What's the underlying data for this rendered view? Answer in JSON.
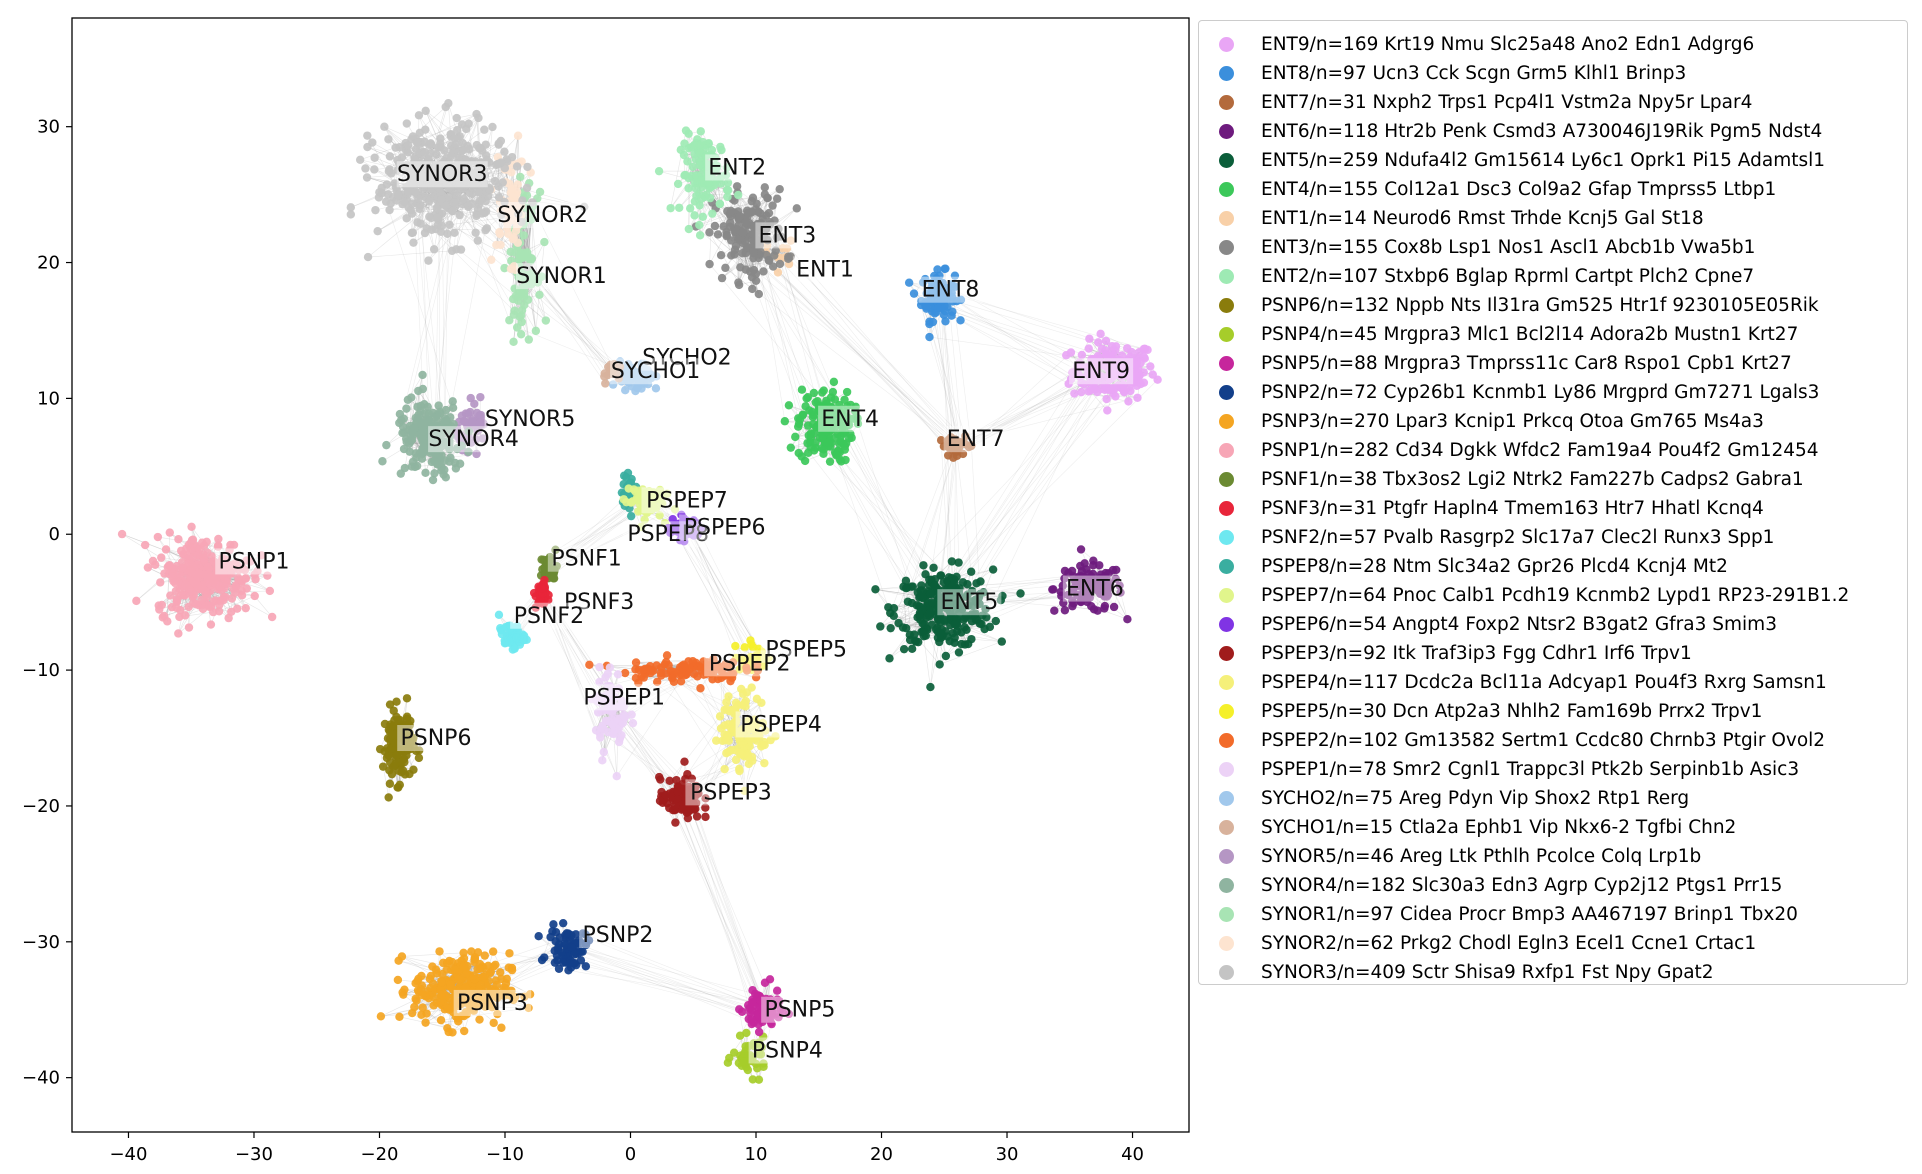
{
  "chart_data": {
    "type": "scatter",
    "title": "",
    "xlabel": "",
    "ylabel": "",
    "xlim": [
      -44.5,
      44.5
    ],
    "ylim": [
      -44,
      38
    ],
    "x_ticks": [
      -40,
      -30,
      -20,
      -10,
      0,
      10,
      20,
      30,
      40
    ],
    "y_ticks": [
      -40,
      -30,
      -20,
      -10,
      0,
      10,
      20,
      30
    ],
    "legend_position": "outside-right",
    "clusters": [
      {
        "id": "ENT9",
        "legend": "ENT9/n=169 Krt19 Nmu Slc25a48 Ano2 Edn1 Adgrg6",
        "color": "#e9a6f5",
        "center": [
          38.5,
          12
        ],
        "spread": [
          3.0,
          2.0
        ],
        "n": 169,
        "label_pos": [
          37.5,
          12
        ]
      },
      {
        "id": "ENT8",
        "legend": "ENT8/n=97 Ucn3 Cck Scgn Grm5 Klhl1 Brinp3",
        "color": "#3b8fdc",
        "center": [
          24.5,
          17.5
        ],
        "spread": [
          1.2,
          1.6
        ],
        "n": 97,
        "label_pos": [
          25.5,
          18
        ]
      },
      {
        "id": "ENT7",
        "legend": "ENT7/n=31 Nxph2 Trps1 Pcp4l1 Vstm2a Npy5r Lpar4",
        "color": "#b36a3c",
        "center": [
          26,
          6.5
        ],
        "spread": [
          1.3,
          0.6
        ],
        "n": 31,
        "label_pos": [
          27.5,
          7
        ]
      },
      {
        "id": "ENT6",
        "legend": "ENT6/n=118 Htr2b Penk Csmd3 A730046J19Rik Pgm5 Ndst4",
        "color": "#6e1b7e",
        "center": [
          36.5,
          -4
        ],
        "spread": [
          2.5,
          1.6
        ],
        "n": 118,
        "label_pos": [
          37,
          -4
        ]
      },
      {
        "id": "ENT5",
        "legend": "ENT5/n=259 Ndufa4l2 Gm15614 Ly6c1 Oprk1 Pi15 Adamtsl1",
        "color": "#0b5e3a",
        "center": [
          25,
          -5.5
        ],
        "spread": [
          3.5,
          2.6
        ],
        "n": 259,
        "label_pos": [
          27,
          -5
        ]
      },
      {
        "id": "ENT4",
        "legend": "ENT4/n=155 Col12a1 Dsc3 Col9a2 Gfap Tmprss5 Ltbp1",
        "color": "#3cc85a",
        "center": [
          15.5,
          8
        ],
        "spread": [
          2.0,
          2.5
        ],
        "n": 155,
        "label_pos": [
          17.5,
          8.5
        ]
      },
      {
        "id": "ENT1",
        "legend": "ENT1/n=14 Neurod6 Rmst Trhde Kcnj5 Gal St18",
        "color": "#f8d0a8",
        "center": [
          12,
          20.5
        ],
        "spread": [
          1.0,
          1.0
        ],
        "n": 14,
        "label_pos": [
          15.5,
          19.5
        ]
      },
      {
        "id": "ENT3",
        "legend": "ENT3/n=155 Cox8b Lsp1 Nos1 Ascl1 Abcb1b Vwa5b1",
        "color": "#888888",
        "center": [
          9.5,
          22
        ],
        "spread": [
          2.6,
          3.0
        ],
        "n": 155,
        "label_pos": [
          12.5,
          22
        ]
      },
      {
        "id": "ENT2",
        "legend": "ENT2/n=107 Stxbp6 Bglap Rprml Cartpt Plch2 Cpne7",
        "color": "#9eeab4",
        "center": [
          6,
          26.5
        ],
        "spread": [
          1.8,
          2.6
        ],
        "n": 107,
        "label_pos": [
          8.5,
          27
        ]
      },
      {
        "id": "PSNP6",
        "legend": "PSNP6/n=132 Nppb Nts Il31ra Gm525 Htr1f 9230105E05Rik",
        "color": "#8a7c0c",
        "center": [
          -18.5,
          -15.5
        ],
        "spread": [
          1.1,
          2.4
        ],
        "n": 132,
        "label_pos": [
          -15.5,
          -15
        ]
      },
      {
        "id": "PSNP4",
        "legend": "PSNP4/n=45 Mrgpra3 Mlc1 Bcl2l14 Adora2b Mustn1 Krt27",
        "color": "#a6cd2a",
        "center": [
          9.5,
          -38.5
        ],
        "spread": [
          1.2,
          1.2
        ],
        "n": 45,
        "label_pos": [
          12.5,
          -38
        ]
      },
      {
        "id": "PSNP5",
        "legend": "PSNP5/n=88 Mrgpra3 Tmprss11c Car8 Rspo1 Cpb1 Krt27",
        "color": "#c6269c",
        "center": [
          10.5,
          -35
        ],
        "spread": [
          1.3,
          1.4
        ],
        "n": 88,
        "label_pos": [
          13.5,
          -35
        ]
      },
      {
        "id": "PSNP2",
        "legend": "PSNP2/n=72 Cyp26b1 Kcnmb1 Ly86 Mrgprd Gm7271 Lgals3",
        "color": "#123f8a",
        "center": [
          -5,
          -30.5
        ],
        "spread": [
          1.4,
          1.3
        ],
        "n": 72,
        "label_pos": [
          -1,
          -29.5
        ]
      },
      {
        "id": "PSNP3",
        "legend": "PSNP3/n=270 Lpar3 Kcnip1 Prkcq Otoa Gm765 Ms4a3",
        "color": "#f4a522",
        "center": [
          -13.5,
          -33.5
        ],
        "spread": [
          3.5,
          2.4
        ],
        "n": 270,
        "label_pos": [
          -11,
          -34.5
        ]
      },
      {
        "id": "PSNP1",
        "legend": "PSNP1/n=282 Cd34 Dgkk Wfdc2 Fam19a4 Pou4f2 Gm12454",
        "color": "#f7a6b6",
        "center": [
          -34,
          -3
        ],
        "spread": [
          3.5,
          2.6
        ],
        "n": 282,
        "label_pos": [
          -30,
          -2
        ]
      },
      {
        "id": "PSNF1",
        "legend": "PSNF1/n=38 Tbx3os2 Lgi2 Ntrk2 Fam227b Cadps2 Gabra1",
        "color": "#6b8a32",
        "center": [
          -6.5,
          -2.5
        ],
        "spread": [
          0.6,
          0.9
        ],
        "n": 38,
        "label_pos": [
          -3.5,
          -1.8
        ]
      },
      {
        "id": "PSNF3",
        "legend": "PSNF3/n=31 Ptgfr Hapln4 Tmem163 Htr7 Hhatl Kcnq4",
        "color": "#e8253a",
        "center": [
          -7,
          -4.5
        ],
        "spread": [
          0.5,
          1.0
        ],
        "n": 31,
        "label_pos": [
          -2.5,
          -5
        ]
      },
      {
        "id": "PSNF2",
        "legend": "PSNF2/n=57 Pvalb Rasgrp2 Slc17a7 Clec2l Runx3 Spp1",
        "color": "#6ee8f0",
        "center": [
          -9.5,
          -7.5
        ],
        "spread": [
          0.9,
          0.8
        ],
        "n": 57,
        "label_pos": [
          -6.5,
          -6
        ]
      },
      {
        "id": "PSPEP8",
        "legend": "PSPEP8/n=28 Ntm Slc34a2 Gpr26 Plcd4 Kcnj4 Mt2",
        "color": "#3aaea0",
        "center": [
          0,
          3
        ],
        "spread": [
          0.6,
          1.2
        ],
        "n": 28,
        "label_pos": [
          3,
          0
        ]
      },
      {
        "id": "PSPEP7",
        "legend": "PSPEP7/n=64 Pnoc Calb1 Pcdh19 Kcnmb2 Lypd1 RP23-291B1.2",
        "color": "#e1f58c",
        "center": [
          1,
          2.5
        ],
        "spread": [
          1.4,
          1.2
        ],
        "n": 64,
        "label_pos": [
          4.5,
          2.5
        ]
      },
      {
        "id": "PSPEP6",
        "legend": "PSPEP6/n=54 Angpt4 Foxp2 Ntsr2 B3gat2 Gfra3 Smim3",
        "color": "#8034e4",
        "center": [
          4.5,
          0.5
        ],
        "spread": [
          1.2,
          0.8
        ],
        "n": 54,
        "label_pos": [
          7.5,
          0.5
        ]
      },
      {
        "id": "PSPEP3",
        "legend": "PSPEP3/n=92 Itk Traf3ip3 Fgg Cdhr1 Irf6 Trpv1",
        "color": "#a01c1c",
        "center": [
          4,
          -19.5
        ],
        "spread": [
          1.5,
          1.4
        ],
        "n": 92,
        "label_pos": [
          8,
          -19
        ]
      },
      {
        "id": "PSPEP4",
        "legend": "PSPEP4/n=117 Dcdc2a Bcl11a Adcyap1 Pou4f3 Rxrg Samsn1",
        "color": "#f5f07a",
        "center": [
          9,
          -14.5
        ],
        "spread": [
          1.8,
          2.6
        ],
        "n": 117,
        "label_pos": [
          12,
          -14
        ]
      },
      {
        "id": "PSPEP5",
        "legend": "PSPEP5/n=30 Dcn Atp2a3 Nhlh2 Fam169b Prrx2 Trpv1",
        "color": "#f5f02a",
        "center": [
          10,
          -9
        ],
        "spread": [
          1.5,
          1.0
        ],
        "n": 30,
        "label_pos": [
          14,
          -8.5
        ]
      },
      {
        "id": "PSPEP2",
        "legend": "PSPEP2/n=102 Gm13582 Sertm1 Ccdc80 Chrnb3 Ptgir Ovol2",
        "color": "#f26b2a",
        "center": [
          4,
          -10
        ],
        "spread": [
          4.5,
          0.8
        ],
        "n": 102,
        "label_pos": [
          9.5,
          -9.5
        ]
      },
      {
        "id": "PSPEP1",
        "legend": "PSPEP1/n=78 Smr2 Cgnl1 Trappc3l Ptk2b Serpinb1b Asic3",
        "color": "#ecd2f6",
        "center": [
          -1.5,
          -13
        ],
        "spread": [
          1.2,
          2.8
        ],
        "n": 78,
        "label_pos": [
          -0.5,
          -12
        ]
      },
      {
        "id": "SYCHO2",
        "legend": "SYCHO2/n=75 Areg Pdyn Vip Shox2 Rtp1 Rerg",
        "color": "#a1c8ec",
        "center": [
          0.5,
          11.5
        ],
        "spread": [
          1.2,
          1.0
        ],
        "n": 75,
        "label_pos": [
          4.5,
          13
        ]
      },
      {
        "id": "SYCHO1",
        "legend": "SYCHO1/n=15 Ctla2a Ephb1 Vip Nkx6-2 Tgfbi Chn2",
        "color": "#d8b29c",
        "center": [
          -1.5,
          12
        ],
        "spread": [
          0.7,
          0.7
        ],
        "n": 15,
        "label_pos": [
          2,
          12
        ]
      },
      {
        "id": "SYNOR5",
        "legend": "SYNOR5/n=46 Areg Ltk Pthlh Pcolce Colq Lrp1b",
        "color": "#b596c4",
        "center": [
          -12.5,
          8
        ],
        "spread": [
          1.2,
          1.4
        ],
        "n": 46,
        "label_pos": [
          -8,
          8.5
        ]
      },
      {
        "id": "SYNOR4",
        "legend": "SYNOR4/n=182 Slc30a3 Edn3 Agrp Cyp2j12 Ptgs1 Prr15",
        "color": "#8fb4a0",
        "center": [
          -16,
          7
        ],
        "spread": [
          2.5,
          2.6
        ],
        "n": 182,
        "label_pos": [
          -12.5,
          7
        ]
      },
      {
        "id": "SYNOR1",
        "legend": "SYNOR1/n=97 Cidea Procr Bmp3 AA467197 Brinp1 Tbx20",
        "color": "#a8e4b4",
        "center": [
          -8.5,
          20
        ],
        "spread": [
          1.0,
          4.5
        ],
        "n": 97,
        "label_pos": [
          -5.5,
          19
        ]
      },
      {
        "id": "SYNOR2",
        "legend": "SYNOR2/n=62 Prkg2 Chodl Egln3 Ecel1 Ccne1 Crtac1",
        "color": "#fde4d0",
        "center": [
          -9.5,
          24
        ],
        "spread": [
          1.2,
          3.5
        ],
        "n": 62,
        "label_pos": [
          -7,
          23.5
        ]
      },
      {
        "id": "SYNOR3",
        "legend": "SYNOR3/n=409 Sctr Shisa9 Rxfp1 Fst Npy Gpat2",
        "color": "#c4c4c4",
        "center": [
          -15,
          26
        ],
        "spread": [
          4.8,
          3.8
        ],
        "n": 409,
        "label_pos": [
          -15,
          26.5
        ]
      }
    ]
  }
}
